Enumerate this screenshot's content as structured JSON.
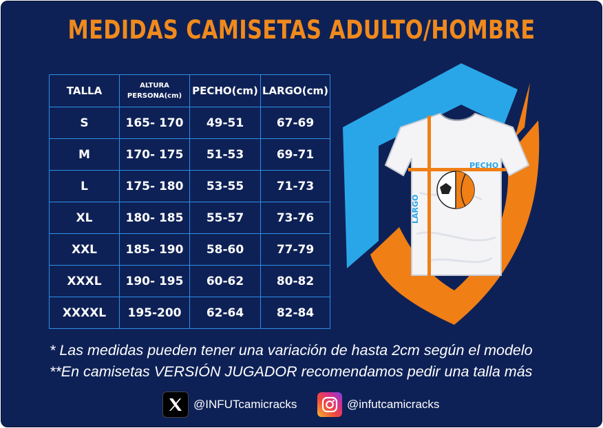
{
  "title": "MEDIDAS CAMISETAS ADULTO/HOMBRE",
  "table": {
    "headers": {
      "talla": "TALLA",
      "altura_1": "ALTURA",
      "altura_2": "PERSONA(cm)",
      "pecho": "PECHO(cm)",
      "largo": "LARGO(cm)"
    },
    "rows": [
      {
        "talla": "S",
        "altura": "165- 170",
        "pecho": "49-51",
        "largo": "67-69"
      },
      {
        "talla": "M",
        "altura": "170- 175",
        "pecho": "51-53",
        "largo": "69-71"
      },
      {
        "talla": "L",
        "altura": "175- 180",
        "pecho": "53-55",
        "largo": "71-73"
      },
      {
        "talla": "XL",
        "altura": "180- 185",
        "pecho": "55-57",
        "largo": "73-76"
      },
      {
        "talla": "XXL",
        "altura": "185- 190",
        "pecho": "58-60",
        "largo": "77-79"
      },
      {
        "talla": "XXXL",
        "altura": "190- 195",
        "pecho": "60-62",
        "largo": "80-82"
      },
      {
        "talla": "XXXXL",
        "altura": "195-200",
        "pecho": "62-64",
        "largo": "82-84"
      }
    ]
  },
  "illustration": {
    "pecho_label": "PECHO",
    "largo_label": "LARGO",
    "icons": [
      "shield-logo",
      "tshirt",
      "ball"
    ]
  },
  "notes": [
    "* Las medidas pueden tener una variación de hasta 2cm según el modelo",
    "**En camisetas VERSIÓN JUGADOR recomendamos pedir una talla más"
  ],
  "social": {
    "x_handle": "@INFUTcamicracks",
    "instagram_handle": "@infutcamicracks",
    "x_icon": "x-logo-icon",
    "instagram_icon": "instagram-icon"
  },
  "colors": {
    "background": "#0e2156",
    "title": "#f08a1c",
    "table_border": "#2e8fe8",
    "shield_blue": "#29a6e8",
    "shield_orange": "#f07f16"
  }
}
